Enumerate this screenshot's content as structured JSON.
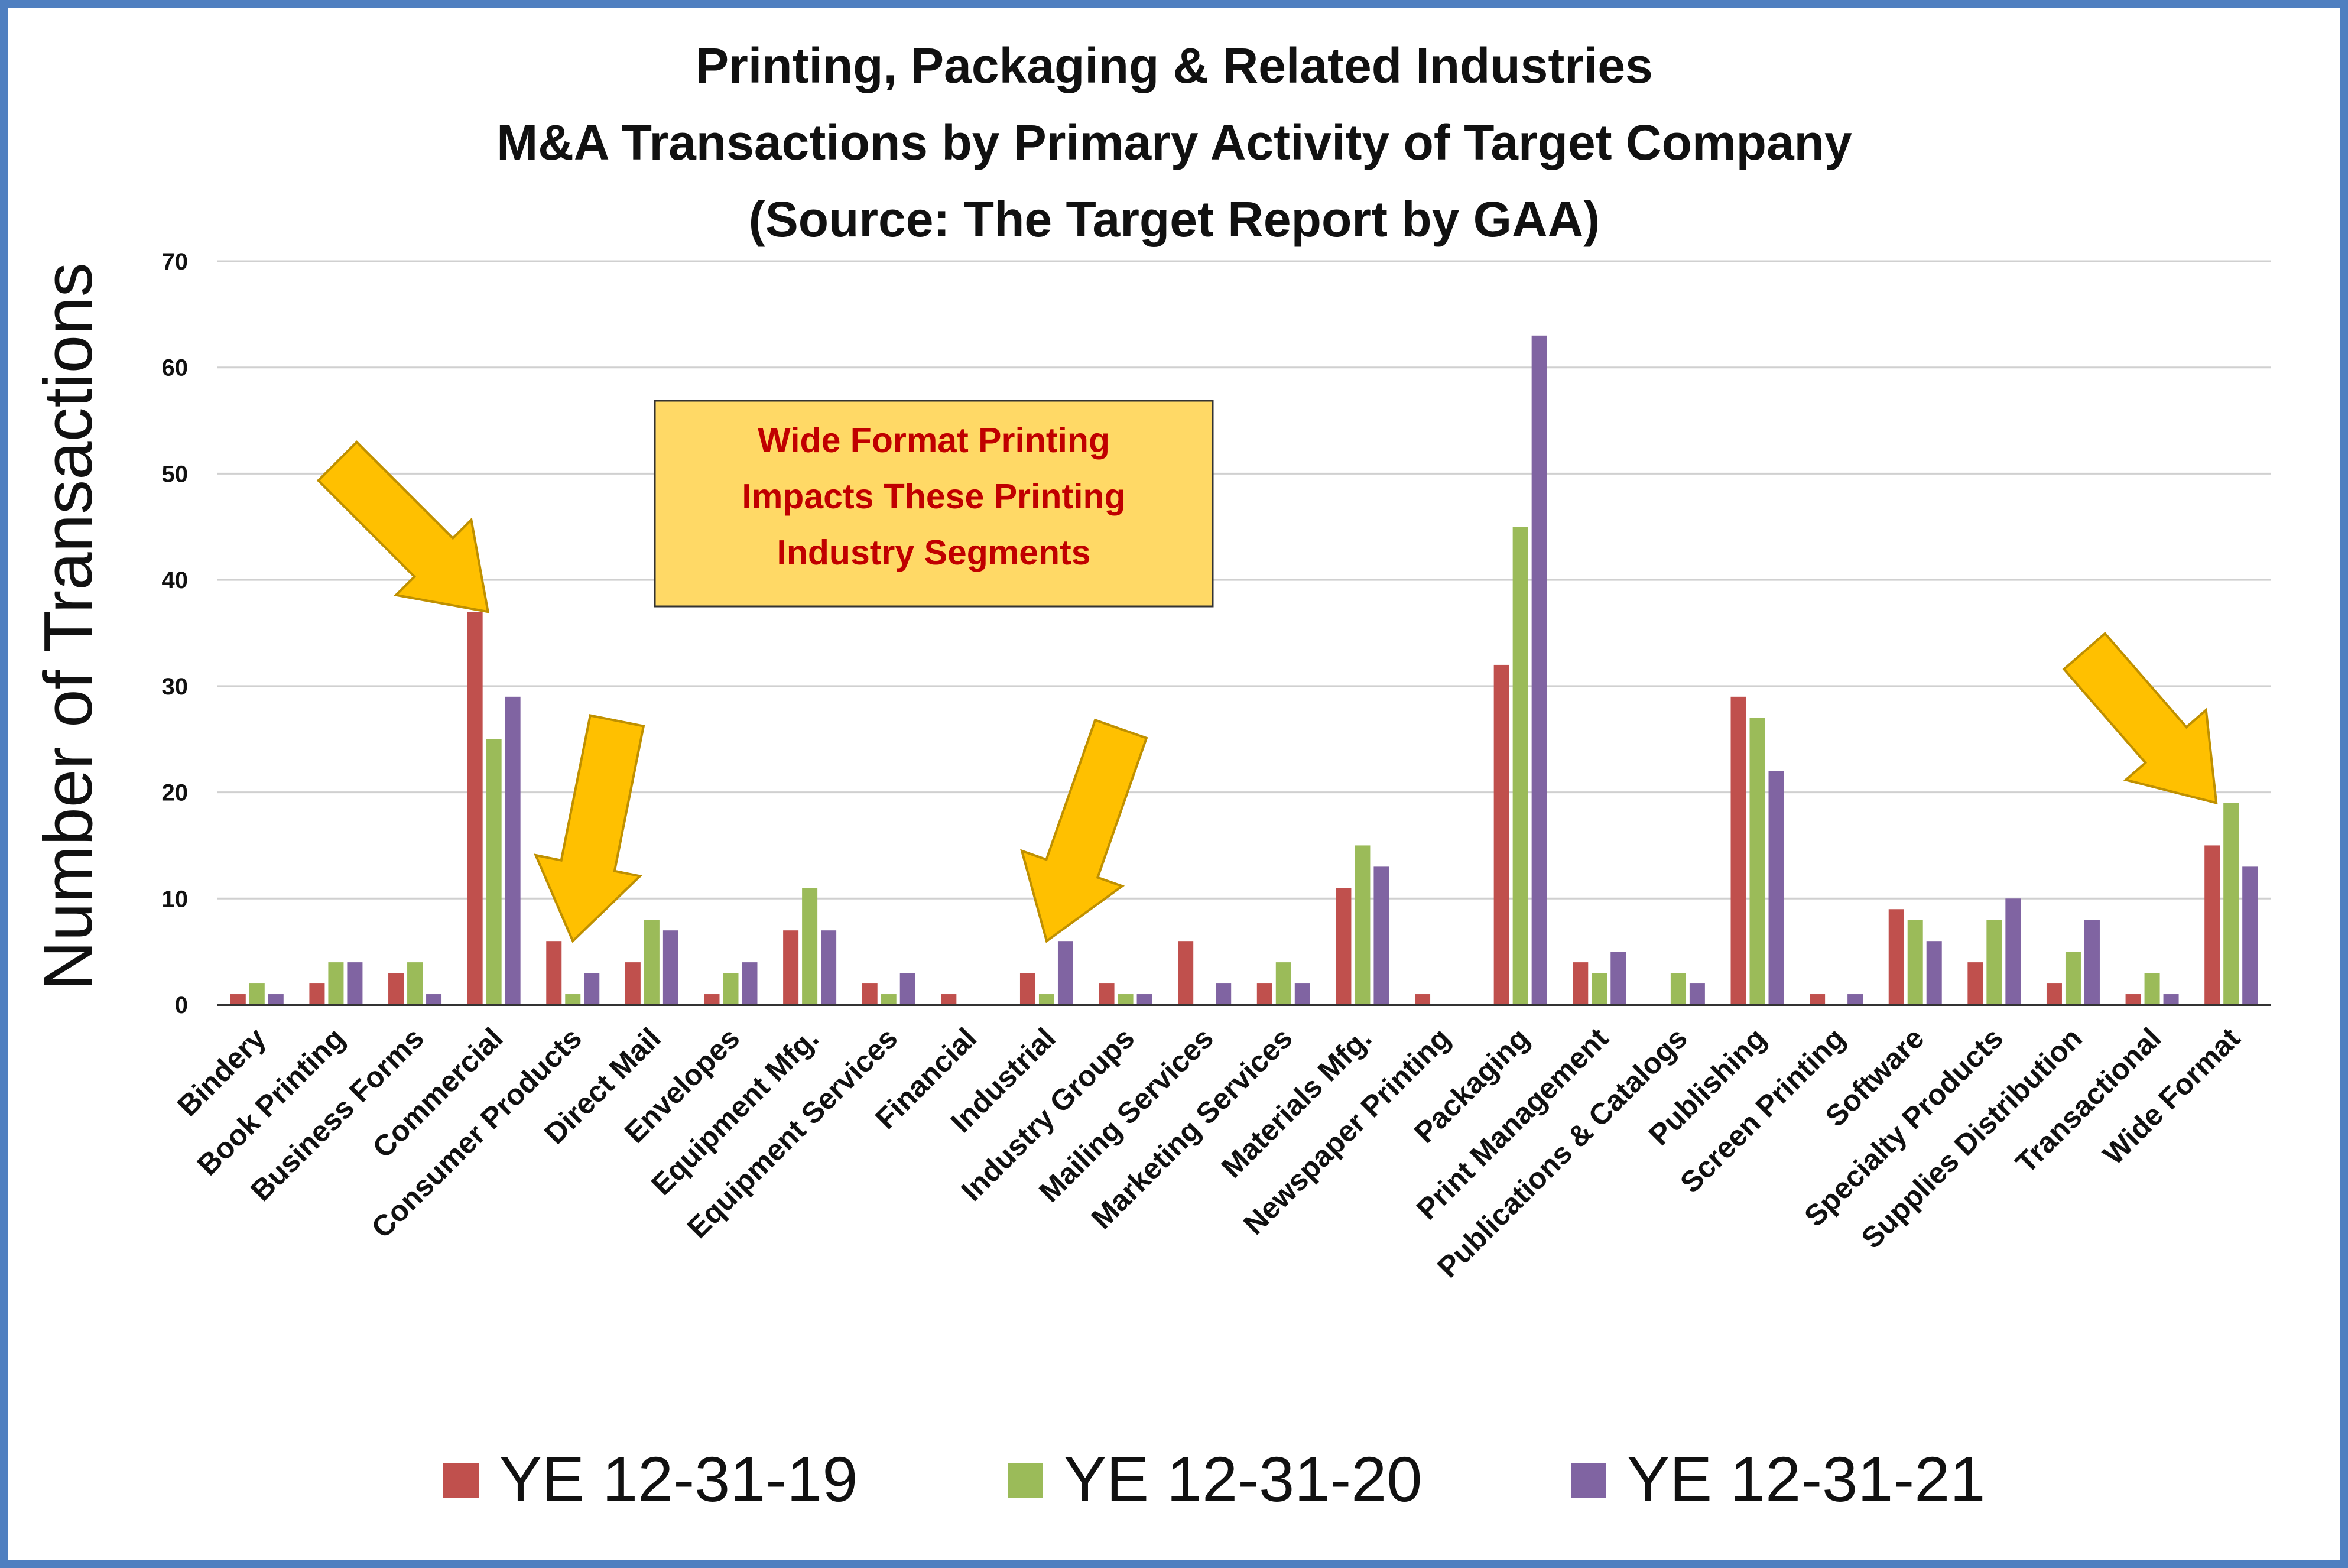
{
  "colors": {
    "frame": "#4f7fc0",
    "note_fill": "#ffd966",
    "note_text": "#c00000",
    "arrow": "#ffc000",
    "arrow_outline": "#bf9000"
  },
  "chart_data": {
    "type": "bar",
    "title": [
      "Printing, Packaging & Related Industries",
      "M&A Transactions by Primary Activity of Target Company",
      "(Source: The Target Report by GAA)"
    ],
    "xlabel": "",
    "ylabel": "Number of Transactions",
    "ylim": [
      0,
      70
    ],
    "yticks": [
      0,
      10,
      20,
      30,
      40,
      50,
      60,
      70
    ],
    "grid": true,
    "legend_position": "bottom",
    "categories": [
      "Bindery",
      "Book Printing",
      "Business Forms",
      "Commercial",
      "Consumer Products",
      "Direct Mail",
      "Envelopes",
      "Equipment Mfg.",
      "Equipment Services",
      "Financial",
      "Industrial",
      "Industry Groups",
      "Mailing Services",
      "Marketing Services",
      "Materials Mfg.",
      "Newspaper Printing",
      "Packaging",
      "Print Management",
      "Publications & Catalogs",
      "Publishing",
      "Screen Printing",
      "Software",
      "Specialty Products",
      "Supplies Distribution",
      "Transactional",
      "Wide Format"
    ],
    "series": [
      {
        "name": "YE 12-31-19",
        "color": "#c0504d",
        "values": [
          1,
          2,
          3,
          37,
          6,
          4,
          1,
          7,
          2,
          1,
          3,
          2,
          6,
          2,
          11,
          1,
          32,
          4,
          0,
          29,
          1,
          9,
          4,
          2,
          1,
          15
        ]
      },
      {
        "name": "YE 12-31-20",
        "color": "#9bbb59",
        "values": [
          2,
          4,
          4,
          25,
          1,
          8,
          3,
          11,
          1,
          0,
          1,
          1,
          0,
          4,
          15,
          0,
          45,
          3,
          3,
          27,
          0,
          8,
          8,
          5,
          3,
          19
        ]
      },
      {
        "name": "YE 12-31-21",
        "color": "#8064a2",
        "values": [
          1,
          4,
          1,
          29,
          3,
          7,
          4,
          7,
          3,
          0,
          6,
          1,
          2,
          2,
          13,
          0,
          63,
          5,
          2,
          22,
          1,
          6,
          10,
          8,
          1,
          13
        ]
      }
    ],
    "annotation": {
      "text": [
        "Wide Format Printing",
        "Impacts These Printing",
        "Industry Segments"
      ],
      "arrows_point_to": [
        "Commercial",
        "Consumer Products",
        "Industrial",
        "Wide Format"
      ],
      "icon": "arrow-icon"
    }
  }
}
